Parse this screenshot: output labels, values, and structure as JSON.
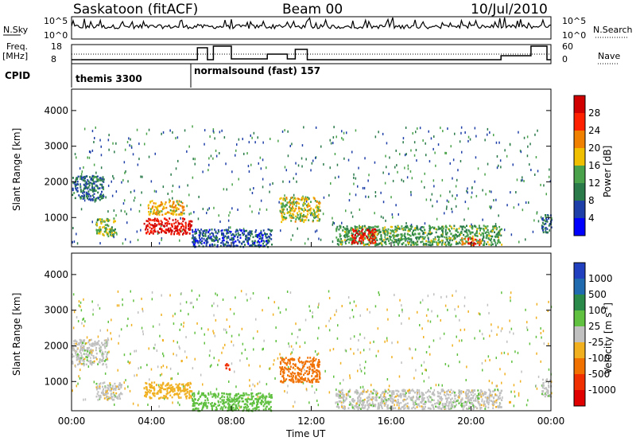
{
  "header": {
    "station": "Saskatoon (fitACF)",
    "beam": "Beam 00",
    "date": "10/Jul/2010"
  },
  "strips": {
    "nsky_label": "N.Sky",
    "nsearch_label": "N.Search",
    "nsky_ticks": [
      "10^5",
      "10^0"
    ],
    "nsky_right_ticks": [
      "10^5",
      "10^0"
    ],
    "freq_label": "Freq.",
    "freq_unit": "[MHz]",
    "freq_ticks": [
      "18",
      "8"
    ],
    "nave_label": "Nave",
    "nave_ticks": [
      "60",
      "0"
    ],
    "cpid_label": "CPID",
    "cpid_segments": [
      {
        "name": "themis 3300",
        "start_hour": 0
      },
      {
        "name": "normalsound (fast) 157",
        "start_hour": 6
      }
    ]
  },
  "chart_data": [
    {
      "type": "heatmap",
      "parameter": "Power",
      "ylabel": "Slant Range [km]",
      "xlabel": "",
      "ylim": [
        180,
        4600
      ],
      "yticks": [
        "4000",
        "3000",
        "2000",
        "1000"
      ],
      "ytick_values": [
        4000,
        3000,
        2000,
        1000
      ],
      "colorbar": {
        "label": "Power [dB]",
        "ticks": [
          "28",
          "24",
          "20",
          "16",
          "12",
          "8",
          "4"
        ],
        "tick_values": [
          28,
          24,
          20,
          16,
          12,
          8,
          4
        ],
        "range": [
          0,
          30
        ],
        "colors": [
          "#0000ff",
          "#1f3fa8",
          "#2a7a4a",
          "#4aa34a",
          "#f0c000",
          "#f08000",
          "#ff2000",
          "#d00000"
        ]
      },
      "regions": [
        {
          "t0": 0.0,
          "t1": 1.6,
          "r0": 1500,
          "r1": 2200,
          "value": 8
        },
        {
          "t0": 1.2,
          "t1": 2.2,
          "r0": 500,
          "r1": 1000,
          "value": 14
        },
        {
          "t0": 3.6,
          "t1": 6.0,
          "r0": 550,
          "r1": 1000,
          "value": 27
        },
        {
          "t0": 3.8,
          "t1": 5.6,
          "r0": 1100,
          "r1": 1500,
          "value": 18
        },
        {
          "t0": 6.0,
          "t1": 10.0,
          "r0": 200,
          "r1": 700,
          "value": 6
        },
        {
          "t0": 10.4,
          "t1": 12.4,
          "r0": 900,
          "r1": 1600,
          "value": 16
        },
        {
          "t0": 13.2,
          "t1": 21.5,
          "r0": 250,
          "r1": 800,
          "value": 12
        },
        {
          "t0": 14.0,
          "t1": 15.2,
          "r0": 300,
          "r1": 700,
          "value": 26
        },
        {
          "t0": 19.5,
          "t1": 20.5,
          "r0": 250,
          "r1": 450,
          "value": 24
        },
        {
          "t0": 23.5,
          "t1": 24.0,
          "r0": 600,
          "r1": 1100,
          "value": 8
        }
      ]
    },
    {
      "type": "heatmap",
      "parameter": "Velocity",
      "ylabel": "Slant Range [km]",
      "xlabel": "Time UT",
      "xlim": [
        0,
        24
      ],
      "xticks": [
        "00:00",
        "04:00",
        "08:00",
        "12:00",
        "16:00",
        "20:00",
        "00:00"
      ],
      "xtick_values": [
        0,
        4,
        8,
        12,
        16,
        20,
        24
      ],
      "ylim": [
        180,
        4600
      ],
      "yticks": [
        "4000",
        "3000",
        "2000",
        "1000"
      ],
      "ytick_values": [
        4000,
        3000,
        2000,
        1000
      ],
      "colorbar": {
        "label": "Velocity [m s",
        "label_sup": "-1",
        "label_end": "]",
        "ticks": [
          "1000",
          "500",
          "100",
          "25",
          "-25",
          "-100",
          "-500",
          "-1000"
        ],
        "tick_values": [
          1000,
          500,
          100,
          25,
          -25,
          -100,
          -500,
          -1000
        ],
        "colors": [
          "#2040c0",
          "#206ab0",
          "#2a8a4a",
          "#60c040",
          "#c0c0c0",
          "#f0b020",
          "#f07000",
          "#f03000",
          "#e00000"
        ]
      },
      "regions": [
        {
          "t0": 0.0,
          "t1": 1.8,
          "r0": 1500,
          "r1": 2200,
          "value": 0
        },
        {
          "t0": 1.2,
          "t1": 2.5,
          "r0": 500,
          "r1": 1000,
          "value": 0
        },
        {
          "t0": 3.6,
          "t1": 6.0,
          "r0": 550,
          "r1": 1000,
          "value": -60
        },
        {
          "t0": 6.0,
          "t1": 10.0,
          "r0": 200,
          "r1": 700,
          "value": 60
        },
        {
          "t0": 7.6,
          "t1": 7.9,
          "r0": 1350,
          "r1": 1550,
          "value": -800
        },
        {
          "t0": 10.4,
          "t1": 12.4,
          "r0": 1000,
          "r1": 1700,
          "value": -150
        },
        {
          "t0": 13.2,
          "t1": 21.5,
          "r0": 250,
          "r1": 800,
          "value": 0
        },
        {
          "t0": 23.5,
          "t1": 24.0,
          "r0": 600,
          "r1": 1100,
          "value": 0
        }
      ]
    }
  ]
}
